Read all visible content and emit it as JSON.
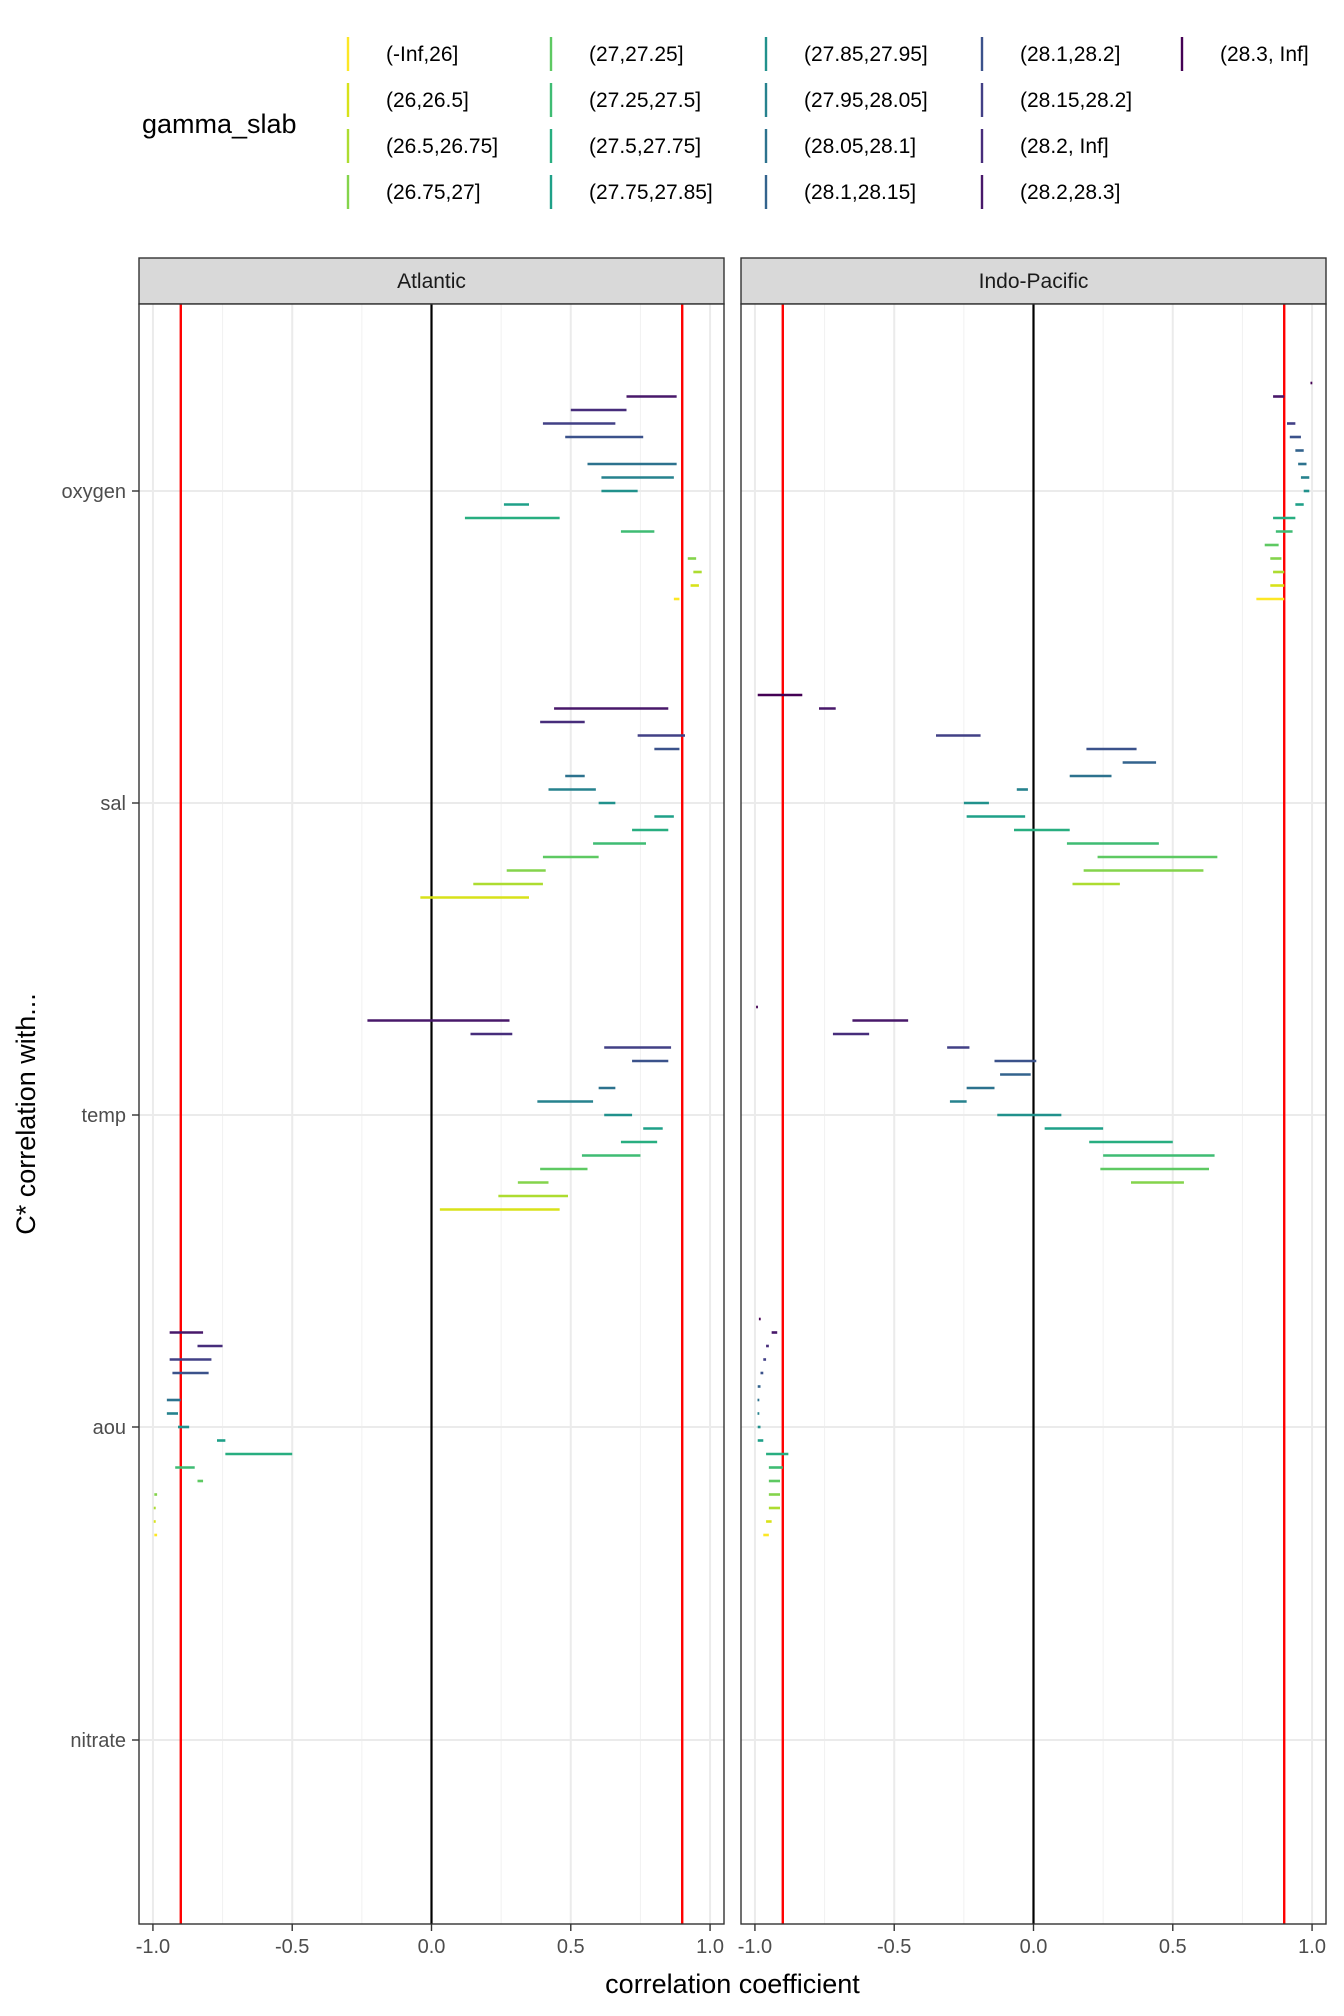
{
  "chart_data": {
    "type": "horizontal-interval",
    "x_axis_title": "correlation coefficient",
    "y_axis_title": "C* correlation with...",
    "xlim": [
      -1.05,
      1.05
    ],
    "x_ticks": [
      -1.0,
      -0.5,
      0.0,
      0.5,
      1.0
    ],
    "x_tick_labels": [
      "-1.0",
      "-0.5",
      "0.0",
      "0.5",
      "1.0"
    ],
    "y_categories": [
      "oxygen",
      "sal",
      "temp",
      "aou",
      "nitrate"
    ],
    "reference_lines": {
      "zero": 0.0,
      "thresholds": [
        -0.9,
        0.9
      ],
      "threshold_color": "#ff0000",
      "zero_color": "#000000"
    },
    "legend": {
      "title": "gamma_slab",
      "entries": [
        {
          "label": "(-Inf,26]",
          "color": "#fde725"
        },
        {
          "label": "(26,26.5]",
          "color": "#d8e219"
        },
        {
          "label": "(26.5,26.75]",
          "color": "#addc30"
        },
        {
          "label": "(26.75,27]",
          "color": "#84d44b"
        },
        {
          "label": "(27,27.25]",
          "color": "#5ec962"
        },
        {
          "label": "(27.25,27.5]",
          "color": "#3fbc73"
        },
        {
          "label": "(27.5,27.75]",
          "color": "#28ae80"
        },
        {
          "label": "(27.75,27.85]",
          "color": "#1fa088"
        },
        {
          "label": "(27.85,27.95]",
          "color": "#21918c"
        },
        {
          "label": "(27.95,28.05]",
          "color": "#26828e"
        },
        {
          "label": "(28.05,28.1]",
          "color": "#2c728e"
        },
        {
          "label": "(28.1,28.15]",
          "color": "#33638d"
        },
        {
          "label": "(28.1,28.2]",
          "color": "#3b528b"
        },
        {
          "label": "(28.15,28.2]",
          "color": "#424086"
        },
        {
          "label": "(28.2, Inf]",
          "color": "#472d7b"
        },
        {
          "label": "(28.2,28.3]",
          "color": "#48186a"
        },
        {
          "label": "(28.3, Inf]",
          "color": "#440154"
        }
      ]
    },
    "panels": [
      {
        "title": "Atlantic",
        "groups": [
          {
            "variable": "oxygen",
            "intervals": [
              [
                15,
                0.7,
                0.88
              ],
              [
                14,
                0.5,
                0.7
              ],
              [
                13,
                0.4,
                0.66
              ],
              [
                12,
                0.48,
                0.76
              ],
              [
                10,
                0.56,
                0.88
              ],
              [
                9,
                0.61,
                0.87
              ],
              [
                8,
                0.61,
                0.74
              ],
              [
                7,
                0.26,
                0.35
              ],
              [
                6,
                0.12,
                0.46
              ],
              [
                5,
                0.68,
                0.8
              ],
              [
                3,
                0.92,
                0.95
              ],
              [
                2,
                0.94,
                0.97
              ],
              [
                1,
                0.93,
                0.96
              ],
              [
                0,
                0.87,
                0.89
              ]
            ]
          },
          {
            "variable": "sal",
            "intervals": [
              [
                15,
                0.44,
                0.85
              ],
              [
                14,
                0.39,
                0.55
              ],
              [
                13,
                0.74,
                0.91
              ],
              [
                12,
                0.8,
                0.89
              ],
              [
                10,
                0.48,
                0.55
              ],
              [
                9,
                0.42,
                0.59
              ],
              [
                8,
                0.6,
                0.66
              ],
              [
                7,
                0.8,
                0.87
              ],
              [
                6,
                0.72,
                0.85
              ],
              [
                5,
                0.58,
                0.77
              ],
              [
                4,
                0.4,
                0.6
              ],
              [
                3,
                0.27,
                0.41
              ],
              [
                2,
                0.15,
                0.4
              ],
              [
                1,
                -0.04,
                0.35
              ]
            ]
          },
          {
            "variable": "temp",
            "intervals": [
              [
                15,
                -0.23,
                0.28
              ],
              [
                14,
                0.14,
                0.29
              ],
              [
                13,
                0.62,
                0.86
              ],
              [
                12,
                0.72,
                0.85
              ],
              [
                10,
                0.6,
                0.66
              ],
              [
                9,
                0.38,
                0.58
              ],
              [
                8,
                0.62,
                0.72
              ],
              [
                7,
                0.76,
                0.83
              ],
              [
                6,
                0.68,
                0.81
              ],
              [
                5,
                0.54,
                0.75
              ],
              [
                4,
                0.39,
                0.56
              ],
              [
                3,
                0.31,
                0.42
              ],
              [
                2,
                0.24,
                0.49
              ],
              [
                1,
                0.03,
                0.46
              ]
            ]
          },
          {
            "variable": "aou",
            "intervals": [
              [
                15,
                -0.94,
                -0.82
              ],
              [
                14,
                -0.84,
                -0.75
              ],
              [
                13,
                -0.94,
                -0.79
              ],
              [
                12,
                -0.93,
                -0.8
              ],
              [
                10,
                -0.95,
                -0.9
              ],
              [
                9,
                -0.95,
                -0.91
              ],
              [
                8,
                -0.91,
                -0.87
              ],
              [
                7,
                -0.77,
                -0.74
              ],
              [
                6,
                -0.74,
                -0.5
              ],
              [
                5,
                -0.92,
                -0.85
              ],
              [
                4,
                -0.84,
                -0.82
              ],
              [
                3,
                -0.995,
                -0.985
              ],
              [
                2,
                -0.997,
                -0.99
              ],
              [
                1,
                -0.997,
                -0.99
              ],
              [
                0,
                -0.995,
                -0.985
              ]
            ]
          },
          {
            "variable": "nitrate",
            "intervals": []
          }
        ]
      },
      {
        "title": "Indo-Pacific",
        "groups": [
          {
            "variable": "oxygen",
            "intervals": [
              [
                16,
                0.995,
                1.0
              ],
              [
                15,
                0.86,
                0.9
              ],
              [
                13,
                0.91,
                0.94
              ],
              [
                12,
                0.92,
                0.96
              ],
              [
                11,
                0.94,
                0.97
              ],
              [
                10,
                0.95,
                0.98
              ],
              [
                9,
                0.96,
                0.99
              ],
              [
                8,
                0.97,
                0.99
              ],
              [
                7,
                0.94,
                0.97
              ],
              [
                6,
                0.86,
                0.94
              ],
              [
                5,
                0.87,
                0.93
              ],
              [
                4,
                0.83,
                0.88
              ],
              [
                3,
                0.85,
                0.89
              ],
              [
                2,
                0.86,
                0.9
              ],
              [
                1,
                0.85,
                0.9
              ],
              [
                0,
                0.8,
                0.9
              ]
            ]
          },
          {
            "variable": "sal",
            "intervals": [
              [
                16,
                -0.99,
                -0.83
              ],
              [
                15,
                -0.77,
                -0.71
              ],
              [
                13,
                -0.35,
                -0.19
              ],
              [
                12,
                0.19,
                0.37
              ],
              [
                11,
                0.32,
                0.44
              ],
              [
                10,
                0.13,
                0.28
              ],
              [
                9,
                -0.06,
                -0.02
              ],
              [
                8,
                -0.25,
                -0.16
              ],
              [
                7,
                -0.24,
                -0.03
              ],
              [
                6,
                -0.07,
                0.13
              ],
              [
                5,
                0.12,
                0.45
              ],
              [
                4,
                0.23,
                0.66
              ],
              [
                3,
                0.18,
                0.61
              ],
              [
                2,
                0.14,
                0.31
              ]
            ]
          },
          {
            "variable": "temp",
            "intervals": [
              [
                16,
                -0.995,
                -0.99
              ],
              [
                15,
                -0.65,
                -0.45
              ],
              [
                14,
                -0.72,
                -0.59
              ],
              [
                13,
                -0.31,
                -0.23
              ],
              [
                12,
                -0.14,
                0.01
              ],
              [
                11,
                -0.12,
                -0.01
              ],
              [
                10,
                -0.24,
                -0.14
              ],
              [
                9,
                -0.3,
                -0.24
              ],
              [
                8,
                -0.13,
                0.1
              ],
              [
                7,
                0.04,
                0.25
              ],
              [
                6,
                0.2,
                0.5
              ],
              [
                5,
                0.25,
                0.65
              ],
              [
                4,
                0.24,
                0.63
              ],
              [
                3,
                0.35,
                0.54
              ]
            ]
          },
          {
            "variable": "aou",
            "intervals": [
              [
                16,
                -0.985,
                -0.98
              ],
              [
                15,
                -0.94,
                -0.92
              ],
              [
                14,
                -0.96,
                -0.95
              ],
              [
                13,
                -0.97,
                -0.96
              ],
              [
                12,
                -0.98,
                -0.97
              ],
              [
                11,
                -0.99,
                -0.98
              ],
              [
                10,
                -0.99,
                -0.985
              ],
              [
                9,
                -0.99,
                -0.985
              ],
              [
                8,
                -0.99,
                -0.98
              ],
              [
                7,
                -0.99,
                -0.97
              ],
              [
                6,
                -0.96,
                -0.88
              ],
              [
                5,
                -0.95,
                -0.9
              ],
              [
                4,
                -0.95,
                -0.91
              ],
              [
                3,
                -0.95,
                -0.91
              ],
              [
                2,
                -0.95,
                -0.91
              ],
              [
                1,
                -0.96,
                -0.94
              ],
              [
                0,
                -0.97,
                -0.95
              ]
            ]
          },
          {
            "variable": "nitrate",
            "intervals": []
          }
        ]
      }
    ]
  }
}
